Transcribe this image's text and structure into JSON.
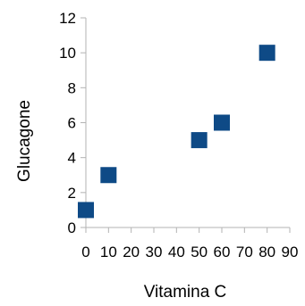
{
  "chart_data": {
    "type": "scatter",
    "title": "",
    "xlabel": "Vitamina C",
    "ylabel": "Glucagone",
    "xlim": [
      0,
      90
    ],
    "ylim": [
      0,
      12
    ],
    "x_ticks": [
      "0",
      "10",
      "20",
      "30",
      "40",
      "50",
      "60",
      "70",
      "80",
      "90"
    ],
    "y_ticks": [
      "0",
      "2",
      "4",
      "6",
      "8",
      "10",
      "12"
    ],
    "grid": false,
    "legend": "none",
    "marker": "square",
    "series": [
      {
        "color": "#0e4a86",
        "points": [
          {
            "x": 0,
            "y": 1
          },
          {
            "x": 10,
            "y": 3
          },
          {
            "x": 50,
            "y": 5
          },
          {
            "x": 60,
            "y": 6
          },
          {
            "x": 80,
            "y": 10
          }
        ]
      }
    ]
  }
}
